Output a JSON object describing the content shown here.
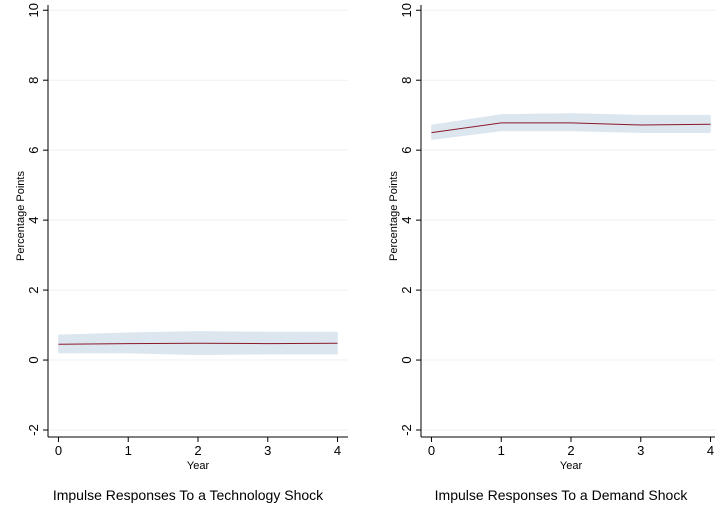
{
  "chart_data": [
    {
      "type": "line",
      "title": "Impulse Responses To a Technology Shock",
      "xlabel": "Year",
      "ylabel": "Percentage Points",
      "x": [
        0,
        1,
        2,
        3,
        4
      ],
      "series": [
        {
          "color": "#8b1a2b",
          "band_color": "#dce6ef",
          "values": [
            0.45,
            0.47,
            0.48,
            0.47,
            0.48
          ],
          "lower": [
            0.2,
            0.2,
            0.15,
            0.17,
            0.17
          ],
          "upper": [
            0.72,
            0.78,
            0.82,
            0.8,
            0.8
          ]
        }
      ],
      "xlim": [
        -0.15,
        4.15
      ],
      "xticks": [
        0,
        1,
        2,
        3,
        4
      ],
      "ylim": [
        -2.2,
        10.15
      ],
      "yticks": [
        -2,
        0,
        2,
        4,
        6,
        8,
        10
      ],
      "grid": true
    },
    {
      "type": "line",
      "title": "Impulse Responses To a Demand Shock",
      "xlabel": "Year",
      "ylabel": "Percentage Points",
      "x": [
        0,
        1,
        2,
        3,
        4
      ],
      "series": [
        {
          "color": "#8b1a2b",
          "band_color": "#dce6ef",
          "values": [
            6.5,
            6.78,
            6.78,
            6.72,
            6.74
          ],
          "lower": [
            6.3,
            6.55,
            6.55,
            6.5,
            6.5
          ],
          "upper": [
            6.72,
            7.02,
            7.05,
            7.0,
            7.0
          ]
        }
      ],
      "xlim": [
        -0.15,
        4.15
      ],
      "xticks": [
        0,
        1,
        2,
        3,
        4
      ],
      "ylim": [
        -2.2,
        10.15
      ],
      "yticks": [
        -2,
        0,
        2,
        4,
        6,
        8,
        10
      ],
      "grid": true
    }
  ]
}
